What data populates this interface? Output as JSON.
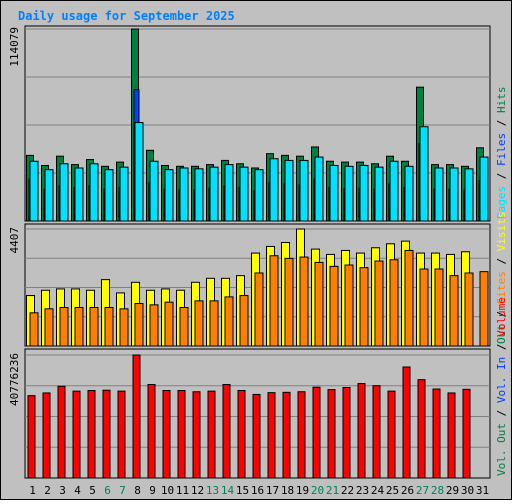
{
  "title": "Daily usage for September 2025",
  "colors": {
    "background": "#c0c0c0",
    "title": "#0080ff",
    "hits": "#008040",
    "files": "#0040ff",
    "pages": "#00e0ff",
    "visits": "#ffff00",
    "sites": "#ff8000",
    "volume": "#ff0000",
    "weekend_label": "#00805c",
    "weekday_label": "#000000"
  },
  "chart_data": [
    {
      "type": "bar",
      "name": "requests",
      "axis_max_label": "114079",
      "ylim": [
        0,
        114079
      ],
      "grid": true,
      "legend": "right",
      "legend_items": [
        {
          "label": "Hits",
          "color_key": "hits"
        },
        {
          "label": "Files",
          "color_key": "files"
        },
        {
          "label": "Pages",
          "color_key": "pages"
        }
      ],
      "series": [
        {
          "name": "Hits",
          "color_key": "hits",
          "values": [
            39000,
            33000,
            38500,
            33500,
            36500,
            32500,
            35000,
            114079,
            42000,
            33000,
            32500,
            32500,
            33500,
            36000,
            34000,
            31500,
            40000,
            39000,
            38500,
            44000,
            35500,
            35000,
            35000,
            34000,
            38500,
            35500,
            79500,
            33500,
            33500,
            32500,
            43500
          ]
        },
        {
          "name": "Files",
          "color_key": "files",
          "values": [
            25000,
            19000,
            21000,
            20000,
            21000,
            19000,
            20000,
            78000,
            23000,
            19000,
            18500,
            18500,
            19500,
            21000,
            20000,
            18000,
            23000,
            22000,
            21500,
            25000,
            20000,
            19500,
            19500,
            19000,
            22000,
            20000,
            46000,
            19000,
            19000,
            18500,
            24000
          ]
        },
        {
          "name": "Pages",
          "color_key": "pages",
          "values": [
            35500,
            30500,
            34000,
            31500,
            34000,
            30500,
            32000,
            58500,
            35500,
            30500,
            31500,
            31000,
            32000,
            33500,
            32000,
            30500,
            37000,
            36000,
            36000,
            38000,
            33000,
            32500,
            33000,
            32000,
            35500,
            32500,
            56000,
            31500,
            31500,
            31000,
            38000
          ]
        }
      ],
      "categories": [
        "1",
        "2",
        "3",
        "4",
        "5",
        "6",
        "7",
        "8",
        "9",
        "10",
        "11",
        "12",
        "13",
        "14",
        "15",
        "16",
        "17",
        "18",
        "19",
        "20",
        "21",
        "22",
        "23",
        "24",
        "25",
        "26",
        "27",
        "28",
        "29",
        "30",
        "31"
      ]
    },
    {
      "type": "bar",
      "name": "visitors",
      "axis_max_label": "4407",
      "ylim": [
        0,
        4407
      ],
      "grid": true,
      "legend": "right",
      "legend_items": [
        {
          "label": "Visits",
          "color_key": "visits"
        },
        {
          "label": "Sites",
          "color_key": "sites"
        },
        {
          "label": "Out",
          "color_key": "hits"
        }
      ],
      "series": [
        {
          "name": "Visits",
          "color_key": "visits",
          "values": [
            1900,
            2100,
            2150,
            2150,
            2100,
            2500,
            2000,
            2400,
            2100,
            2150,
            2100,
            2400,
            2550,
            2550,
            2650,
            3500,
            3750,
            3900,
            4407,
            3650,
            3450,
            3600,
            3500,
            3700,
            3850,
            3950,
            3500,
            3500,
            3450,
            3550,
            0
          ]
        },
        {
          "name": "Sites",
          "color_key": "sites",
          "values": [
            1250,
            1400,
            1450,
            1450,
            1450,
            1450,
            1400,
            1600,
            1550,
            1650,
            1450,
            1700,
            1700,
            1850,
            1900,
            2750,
            3400,
            3300,
            3350,
            3150,
            3000,
            3050,
            2950,
            3200,
            3250,
            3600,
            2900,
            2900,
            2650,
            2750,
            2800
          ]
        }
      ],
      "categories": [
        "1",
        "2",
        "3",
        "4",
        "5",
        "6",
        "7",
        "8",
        "9",
        "10",
        "11",
        "12",
        "13",
        "14",
        "15",
        "16",
        "17",
        "18",
        "19",
        "20",
        "21",
        "22",
        "23",
        "24",
        "25",
        "26",
        "27",
        "28",
        "29",
        "30",
        "31"
      ]
    },
    {
      "type": "bar",
      "name": "volume",
      "axis_max_label": "40776236",
      "ylim": [
        0,
        40776236
      ],
      "grid": true,
      "legend": "right",
      "legend_items": [
        {
          "label": "Volume",
          "color_key": "volume"
        },
        {
          "label": "Vol. In",
          "color_key": "files"
        },
        {
          "label": "Vol. Out",
          "color_key": "hits"
        }
      ],
      "series": [
        {
          "name": "Volume",
          "color_key": "volume",
          "values": [
            27300000,
            28200000,
            30400000,
            28800000,
            29000000,
            29100000,
            28800000,
            40776236,
            31000000,
            29000000,
            29000000,
            28600000,
            28800000,
            31000000,
            29000000,
            27700000,
            28300000,
            28400000,
            28600000,
            30100000,
            29300000,
            30000000,
            31300000,
            30600000,
            28800000,
            36800000,
            32600000,
            29500000,
            28200000,
            29400000,
            0
          ]
        }
      ],
      "categories": [
        "1",
        "2",
        "3",
        "4",
        "5",
        "6",
        "7",
        "8",
        "9",
        "10",
        "11",
        "12",
        "13",
        "14",
        "15",
        "16",
        "17",
        "18",
        "19",
        "20",
        "21",
        "22",
        "23",
        "24",
        "25",
        "26",
        "27",
        "28",
        "29",
        "30",
        "31"
      ],
      "weekend_days": [
        "6",
        "7",
        "13",
        "14",
        "20",
        "21",
        "27",
        "28"
      ]
    }
  ]
}
